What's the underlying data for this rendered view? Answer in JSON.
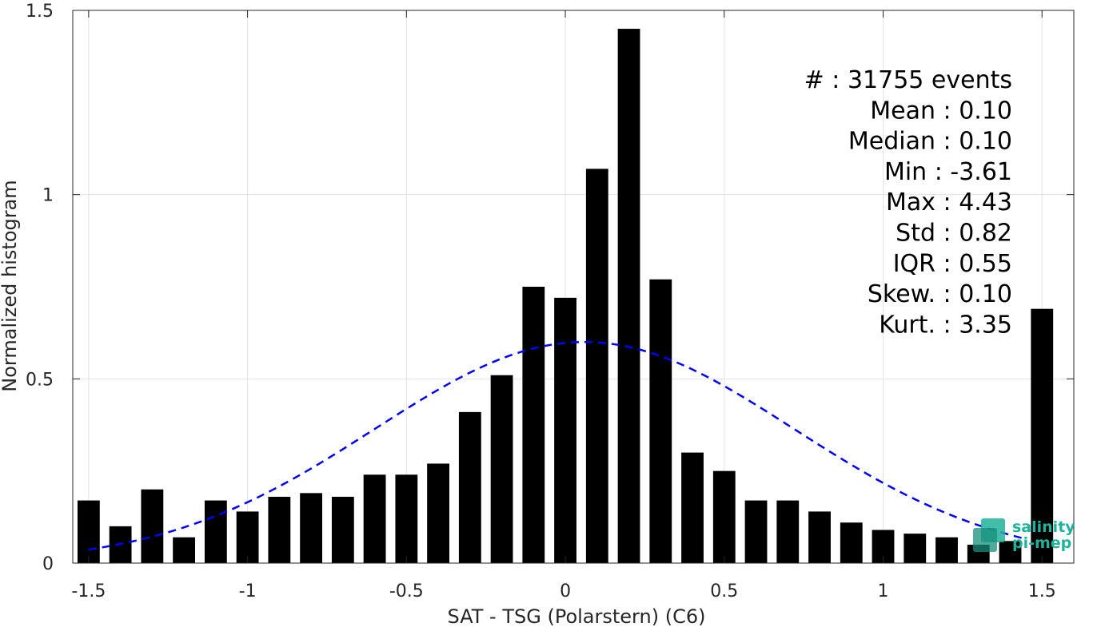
{
  "chart_data": {
    "type": "bar",
    "xlabel": "SAT - TSG (Polarstern) (C6)",
    "ylabel": "Normalized histogram",
    "xlim": [
      -1.55,
      1.6
    ],
    "ylim": [
      0,
      1.5
    ],
    "xticks": [
      "-1.5",
      "-1",
      "-0.5",
      "0",
      "0.5",
      "1",
      "1.5"
    ],
    "xtick_values": [
      -1.5,
      -1,
      -0.5,
      0,
      0.5,
      1,
      1.5
    ],
    "yticks": [
      "0",
      "0.5",
      "1",
      "1.5"
    ],
    "ytick_values": [
      0,
      0.5,
      1,
      1.5
    ],
    "grid": true,
    "bar_color": "#000000",
    "fit_color": "#0000ff",
    "bins": [
      {
        "x": -1.5,
        "y": 0.17
      },
      {
        "x": -1.4,
        "y": 0.1
      },
      {
        "x": -1.3,
        "y": 0.2
      },
      {
        "x": -1.2,
        "y": 0.07
      },
      {
        "x": -1.1,
        "y": 0.17
      },
      {
        "x": -1.0,
        "y": 0.14
      },
      {
        "x": -0.9,
        "y": 0.18
      },
      {
        "x": -0.8,
        "y": 0.19
      },
      {
        "x": -0.7,
        "y": 0.18
      },
      {
        "x": -0.6,
        "y": 0.24
      },
      {
        "x": -0.5,
        "y": 0.24
      },
      {
        "x": -0.4,
        "y": 0.27
      },
      {
        "x": -0.3,
        "y": 0.41
      },
      {
        "x": -0.2,
        "y": 0.51
      },
      {
        "x": -0.1,
        "y": 0.75
      },
      {
        "x": 0.0,
        "y": 0.72
      },
      {
        "x": 0.1,
        "y": 1.07
      },
      {
        "x": 0.2,
        "y": 1.45
      },
      {
        "x": 0.3,
        "y": 0.77
      },
      {
        "x": 0.4,
        "y": 0.3
      },
      {
        "x": 0.5,
        "y": 0.25
      },
      {
        "x": 0.6,
        "y": 0.17
      },
      {
        "x": 0.7,
        "y": 0.17
      },
      {
        "x": 0.8,
        "y": 0.14
      },
      {
        "x": 0.9,
        "y": 0.11
      },
      {
        "x": 1.0,
        "y": 0.09
      },
      {
        "x": 1.1,
        "y": 0.08
      },
      {
        "x": 1.2,
        "y": 0.07
      },
      {
        "x": 1.3,
        "y": 0.05
      },
      {
        "x": 1.4,
        "y": 0.06
      },
      {
        "x": 1.5,
        "y": 0.69
      }
    ],
    "fit": {
      "type": "gaussian",
      "mean": 0.06,
      "std": 0.66,
      "amplitude": 0.6,
      "x_range": [
        -1.5,
        1.45
      ]
    },
    "stats": [
      "#  : 31755 events",
      "Mean : 0.10",
      "Median : 0.10",
      "Min : -3.61",
      "Max : 4.43",
      "Std : 0.82",
      "IQR : 0.55",
      "Skew. : 0.10",
      "Kurt. : 3.35"
    ]
  },
  "logo": {
    "line1": "salinity",
    "line2": "pi-mep",
    "color": "#20b29a"
  }
}
